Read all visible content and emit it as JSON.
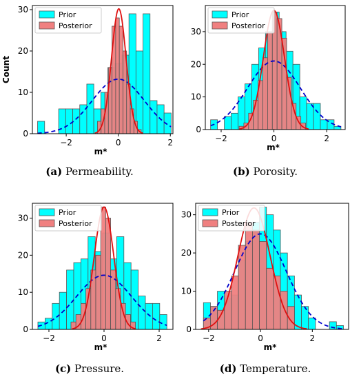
{
  "chart_data": [
    {
      "type": "bar",
      "caption_letter": "(a)",
      "caption_text": " Permeability.",
      "ylabel": "Count",
      "xlabel": "m*",
      "xlim": [
        -3.3,
        2.1
      ],
      "ylim": [
        0,
        31
      ],
      "xticks": [
        -2,
        0,
        2
      ],
      "yticks": [
        0,
        10,
        20,
        30
      ],
      "legend": [
        "Prior",
        "Posterior"
      ],
      "legend_position": "top-left",
      "prior_bins": {
        "edges": [
          -3.1,
          -2.83,
          -2.56,
          -2.29,
          -2.02,
          -1.75,
          -1.48,
          -1.21,
          -0.94,
          -0.67,
          -0.4,
          -0.13,
          0.14,
          0.41,
          0.68,
          0.95,
          1.22,
          1.49,
          1.76,
          2.03
        ],
        "counts": [
          3,
          0,
          0,
          6,
          6,
          6,
          7,
          12,
          6,
          10,
          16,
          17,
          19,
          29,
          20,
          29,
          8,
          7,
          5
        ]
      },
      "posterior_bins": {
        "edges": [
          -0.8,
          -0.66,
          -0.52,
          -0.38,
          -0.24,
          -0.1,
          0.04,
          0.18,
          0.32,
          0.46,
          0.6,
          0.74,
          0.88
        ],
        "counts": [
          3,
          6,
          10,
          16,
          26,
          28,
          26,
          20,
          12,
          6,
          3,
          1
        ]
      },
      "prior_curve": {
        "mean": 0.0,
        "sd": 1.0,
        "peak": 13.2
      },
      "posterior_curve": {
        "mean": 0.02,
        "sd": 0.28,
        "peak": 30.2
      }
    },
    {
      "type": "bar",
      "caption_letter": "(b)",
      "caption_text": " Porosity.",
      "ylabel": "",
      "xlabel": "m*",
      "xlim": [
        -2.6,
        2.7
      ],
      "ylim": [
        0,
        38
      ],
      "xticks": [
        -2,
        0,
        2
      ],
      "yticks": [
        0,
        10,
        20,
        30
      ],
      "legend": [
        "Prior",
        "Posterior"
      ],
      "legend_position": "top-left",
      "prior_bins": {
        "edges": [
          -2.4,
          -2.14,
          -1.88,
          -1.62,
          -1.36,
          -1.1,
          -0.84,
          -0.58,
          -0.32,
          -0.06,
          0.2,
          0.46,
          0.72,
          0.98,
          1.24,
          1.5,
          1.76,
          2.02,
          2.28,
          2.54
        ],
        "counts": [
          3,
          0,
          4,
          5,
          10,
          14,
          20,
          25,
          30,
          36,
          30,
          24,
          20,
          10,
          8,
          8,
          3,
          3,
          1
        ]
      },
      "posterior_bins": {
        "edges": [
          -1.32,
          -1.14,
          -0.96,
          -0.78,
          -0.6,
          -0.42,
          -0.24,
          -0.06,
          0.12,
          0.3,
          0.48,
          0.66,
          0.84,
          1.02,
          1.2
        ],
        "counts": [
          1,
          2,
          5,
          9,
          15,
          22,
          30,
          36,
          34,
          28,
          16,
          8,
          4,
          2
        ]
      },
      "prior_curve": {
        "mean": 0.0,
        "sd": 1.0,
        "peak": 21.0
      },
      "posterior_curve": {
        "mean": 0.0,
        "sd": 0.4,
        "peak": 36.5
      }
    },
    {
      "type": "bar",
      "caption_letter": "(c)",
      "caption_text": " Pressure.",
      "ylabel": "",
      "xlabel": "m*",
      "xlim": [
        -2.6,
        2.5
      ],
      "ylim": [
        0,
        34
      ],
      "xticks": [
        -2,
        0,
        2
      ],
      "yticks": [
        0,
        10,
        20,
        30
      ],
      "legend": [
        "Prior",
        "Posterior"
      ],
      "legend_position": "top-left",
      "prior_bins": {
        "edges": [
          -2.4,
          -2.14,
          -1.88,
          -1.62,
          -1.36,
          -1.1,
          -0.84,
          -0.58,
          -0.32,
          -0.06,
          0.2,
          0.46,
          0.72,
          0.98,
          1.24,
          1.5,
          1.76,
          2.02,
          2.28
        ],
        "counts": [
          2,
          3,
          7,
          10,
          16,
          18,
          19,
          25,
          21,
          26,
          19,
          25,
          18,
          16,
          9,
          7,
          7,
          4
        ]
      },
      "posterior_bins": {
        "edges": [
          -1.2,
          -1.02,
          -0.84,
          -0.66,
          -0.48,
          -0.3,
          -0.12,
          0.06,
          0.24,
          0.42,
          0.6,
          0.78,
          0.96,
          1.14
        ],
        "counts": [
          2,
          4,
          7,
          11,
          16,
          20,
          33,
          30,
          16,
          11,
          7,
          4,
          2
        ]
      },
      "prior_curve": {
        "mean": 0.0,
        "sd": 1.0,
        "peak": 14.6
      },
      "posterior_curve": {
        "mean": 0.0,
        "sd": 0.35,
        "peak": 33.0
      }
    },
    {
      "type": "bar",
      "caption_letter": "(d)",
      "caption_text": " Temperature.",
      "ylabel": "",
      "xlabel": "m*",
      "xlim": [
        -2.5,
        3.4
      ],
      "ylim": [
        0,
        33
      ],
      "xticks": [
        -2,
        0,
        2
      ],
      "yticks": [
        0,
        10,
        20,
        30
      ],
      "legend": [
        "Prior",
        "Posterior"
      ],
      "legend_position": "top-left",
      "prior_bins": {
        "edges": [
          -2.2,
          -1.93,
          -1.66,
          -1.39,
          -1.12,
          -0.85,
          -0.58,
          -0.31,
          -0.04,
          0.23,
          0.5,
          0.77,
          1.04,
          1.31,
          1.58,
          1.85,
          2.12,
          2.39,
          2.66,
          2.93,
          3.2
        ],
        "counts": [
          7,
          6,
          10,
          8,
          9,
          18,
          23,
          28,
          32,
          30,
          26,
          20,
          14,
          9,
          6,
          3,
          0,
          0,
          2,
          1
        ]
      },
      "posterior_bins": {
        "edges": [
          -2.2,
          -1.93,
          -1.66,
          -1.39,
          -1.12,
          -0.85,
          -0.58,
          -0.31,
          -0.04,
          0.23,
          0.5,
          0.77,
          1.04,
          1.31
        ],
        "counts": [
          3,
          6,
          5,
          10,
          14,
          22,
          28,
          26,
          23,
          16,
          14,
          10,
          6
        ]
      },
      "prior_curve": {
        "mean": 0.0,
        "sd": 1.0,
        "peak": 25.0
      },
      "posterior_curve": {
        "mean": -0.25,
        "sd": 0.62,
        "peak": 31.8
      }
    }
  ],
  "colors": {
    "prior_fill": "#00FFFF",
    "posterior_fill": "#F08080",
    "prior_curve": "#0000CC",
    "posterior_curve": "#E01010",
    "edge": "#555555"
  }
}
